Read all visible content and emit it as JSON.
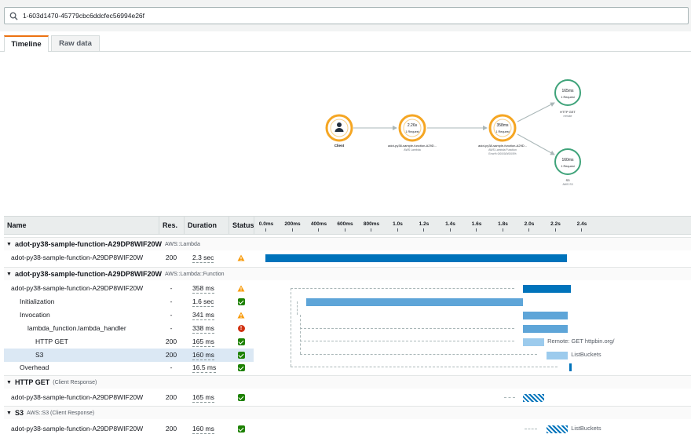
{
  "search": {
    "value": "1-603d1470-45779cbc6ddcfec56994e26f"
  },
  "tabs": [
    {
      "label": "Timeline"
    },
    {
      "label": "Raw data"
    }
  ],
  "service_map": {
    "nodes": [
      {
        "label": "Client",
        "value": "",
        "requests": "",
        "color": "#f5a623"
      },
      {
        "label": "adot-py38-sample-function-A29D...",
        "sublabel": "AWS Lambda",
        "value": "2.26s",
        "requests": "1 Request",
        "color": "#f5a623"
      },
      {
        "label": "adot-py38-sample-function-A29D...",
        "sublabel": "AWS Lambda Function",
        "sublabel2": "Error% 0/0/0/0/0/0/0/0%",
        "value": "358ms",
        "requests": "1 Request",
        "color": "#f5a623"
      },
      {
        "label": "HTTP GET",
        "sublabel": "remote",
        "value": "165ms",
        "requests": "1 Request",
        "color": "#3fa37a"
      },
      {
        "label": "S3",
        "sublabel": "AWS S3",
        "value": "160ms",
        "requests": "1 Request",
        "color": "#3fa37a"
      }
    ]
  },
  "table": {
    "headers": {
      "name": "Name",
      "res": "Res.",
      "duration": "Duration",
      "status": "Status"
    },
    "ticks": [
      "0.0ms",
      "200ms",
      "400ms",
      "600ms",
      "800ms",
      "1.0s",
      "1.2s",
      "1.4s",
      "1.6s",
      "1.8s",
      "2.0s",
      "2.2s",
      "2.4s"
    ],
    "sections": [
      {
        "title": "adot-py38-sample-function-A29DP8WIF20W",
        "subtitle": "AWS::Lambda"
      },
      {
        "title": "adot-py38-sample-function-A29DP8WIF20W",
        "subtitle": "AWS::Lambda::Function"
      },
      {
        "title": "HTTP GET",
        "subtitle": "(Client Response)"
      },
      {
        "title": "S3",
        "subtitle": "AWS::S3 (Client Response)"
      }
    ],
    "rows": [
      {
        "name": "adot-py38-sample-function-A29DP8WIF20W",
        "res": "200",
        "duration": "2.3 sec",
        "status": "warning",
        "start_s": 0.0,
        "end_s": 2.29
      },
      {
        "name": "adot-py38-sample-function-A29DP8WIF20W",
        "res": "-",
        "duration": "358 ms",
        "status": "warning",
        "start_s": 1.96,
        "end_s": 2.32
      },
      {
        "name": "Initialization",
        "res": "-",
        "duration": "1.6 sec",
        "status": "ok",
        "start_s": 0.31,
        "end_s": 1.96
      },
      {
        "name": "Invocation",
        "res": "-",
        "duration": "341 ms",
        "status": "warning",
        "start_s": 1.96,
        "end_s": 2.3
      },
      {
        "name": "lambda_function.lambda_handler",
        "res": "-",
        "duration": "338 ms",
        "status": "error",
        "start_s": 1.96,
        "end_s": 2.3
      },
      {
        "name": "HTTP GET",
        "res": "200",
        "duration": "165 ms",
        "status": "ok",
        "start_s": 1.96,
        "end_s": 2.12,
        "label": "Remote: GET httpbin.org/"
      },
      {
        "name": "S3",
        "res": "200",
        "duration": "160 ms",
        "status": "ok",
        "start_s": 2.14,
        "end_s": 2.3,
        "label": "ListBuckets"
      },
      {
        "name": "Overhead",
        "res": "-",
        "duration": "16.5 ms",
        "status": "ok",
        "start_s": 2.31,
        "end_s": 2.33
      },
      {
        "name": "adot-py38-sample-function-A29DP8WIF20W",
        "res": "200",
        "duration": "165 ms",
        "status": "ok",
        "start_s": 1.96,
        "end_s": 2.12
      },
      {
        "name": "adot-py38-sample-function-A29DP8WIF20W",
        "res": "200",
        "duration": "160 ms",
        "status": "ok",
        "start_s": 2.14,
        "end_s": 2.3,
        "label": "ListBuckets"
      }
    ]
  },
  "colors": {
    "accent": "#ec7211",
    "bar": "#0073bb",
    "ok": "#1d8102",
    "warning": "#f89c0e",
    "error": "#d13212",
    "selected_row": "#dbe8f4"
  }
}
